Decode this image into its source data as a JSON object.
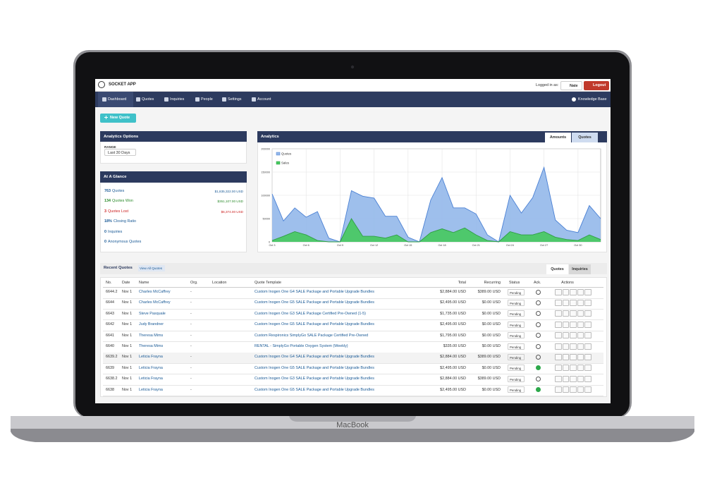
{
  "device_label": "MacBook",
  "header": {
    "app_name": "SOCKET APP",
    "logged_in_label": "Logged in as:",
    "user": "Nate",
    "logout": "Logout"
  },
  "nav": {
    "items": [
      "Dashboard",
      "Quotes",
      "Inquiries",
      "People",
      "Settings",
      "Account"
    ],
    "help": "Knowledge Base"
  },
  "new_quote_button": "New Quote",
  "analytics_options": {
    "title": "Analytics Options",
    "range_label": "RANGE",
    "range_value": "Last 30 Days"
  },
  "at_a_glance": {
    "title": "At A Glance",
    "items": [
      {
        "count": "763",
        "label": "Quotes",
        "amount": "$1,835,322.00 USD"
      },
      {
        "count": "134",
        "label": "Quotes Won",
        "amount": "$351,107.00 USD"
      },
      {
        "count": "3",
        "label": "Quotes Lost",
        "amount": "$6,374.00 USD"
      },
      {
        "count": "18%",
        "label": "Closing Ratio"
      },
      {
        "count": "0",
        "label": "Inquiries"
      },
      {
        "count": "0",
        "label": "Anonymous Quotes"
      }
    ]
  },
  "analytics": {
    "title": "Analytics",
    "tabs": [
      "Amounts",
      "Quotes"
    ],
    "active_tab": 0,
    "chart": {
      "type": "area",
      "categories": [
        "Oct 3",
        null,
        null,
        "Oct 6",
        null,
        null,
        "Oct 9",
        null,
        null,
        "Oct 12",
        null,
        null,
        "Oct 15",
        null,
        null,
        "Oct 18",
        null,
        null,
        "Oct 21",
        null,
        null,
        "Oct 24",
        null,
        null,
        "Oct 27",
        null,
        null,
        "Oct 30",
        null,
        null
      ],
      "series": [
        {
          "name": "Quotes",
          "color": "#4a80d4",
          "fill": "#94b8ea",
          "values": [
            103000,
            45000,
            73000,
            53000,
            65000,
            8000,
            0,
            110000,
            98000,
            94000,
            55000,
            55000,
            10000,
            0,
            90000,
            138000,
            73000,
            73000,
            60000,
            15000,
            0,
            100000,
            62000,
            95000,
            160000,
            47000,
            25000,
            20000,
            78000,
            50000
          ]
        },
        {
          "name": "Sales",
          "color": "#2f9e44",
          "fill": "#45c95e",
          "values": [
            3000,
            12000,
            22000,
            15000,
            3000,
            0,
            0,
            50000,
            12000,
            12000,
            8000,
            15000,
            0,
            0,
            20000,
            28000,
            20000,
            30000,
            15000,
            3000,
            0,
            22000,
            15000,
            15000,
            22000,
            10000,
            5000,
            3000,
            15000,
            5000
          ]
        }
      ],
      "ylim": [
        0,
        200000
      ],
      "yticks": [
        0,
        50000,
        100000,
        150000,
        200000
      ],
      "grid": true
    }
  },
  "recent_quotes": {
    "title": "Recent Quotes",
    "view_all": "View All Quotes",
    "tabs": [
      "Quotes",
      "Inquiries"
    ],
    "active_tab": 0,
    "columns": [
      "No.",
      "Date",
      "Name",
      "Org.",
      "Location",
      "Quote Template",
      "Total",
      "Recurring",
      "Status",
      "Ack.",
      "Actions"
    ],
    "rows": [
      {
        "no": "6644.2",
        "date": "Nov 1",
        "name": "Charles McCaffrey",
        "org": "-",
        "template": "Custom Inogen One G4 SALE Package and Portable Upgrade Bundles",
        "total": "$2,884.00 USD",
        "recurring": "$389.00 USD",
        "status": "Pending",
        "ack": false
      },
      {
        "no": "6644",
        "date": "Nov 1",
        "name": "Charles McCaffrey",
        "org": "-",
        "template": "Custom Inogen One G5 SALE Package and Portable Upgrade Bundles",
        "total": "$2,495.00 USD",
        "recurring": "$0.00 USD",
        "status": "Pending",
        "ack": false
      },
      {
        "no": "6643",
        "date": "Nov 1",
        "name": "Steve Pasquale",
        "org": "-",
        "template": "Custom Inogen One G3 SALE Package Certified Pre-Owned (1-5)",
        "total": "$1,735.00 USD",
        "recurring": "$0.00 USD",
        "status": "Pending",
        "ack": false
      },
      {
        "no": "6642",
        "date": "Nov 1",
        "name": "Judy Brandner",
        "org": "-",
        "template": "Custom Inogen One G5 SALE Package and Portable Upgrade Bundles",
        "total": "$2,495.00 USD",
        "recurring": "$0.00 USD",
        "status": "Pending",
        "ack": false
      },
      {
        "no": "6641",
        "date": "Nov 1",
        "name": "Theresa Mims",
        "org": "-",
        "template": "Custom Respironics SimplyGo SALE Package Certified Pre-Owned",
        "total": "$1,795.00 USD",
        "recurring": "$0.00 USD",
        "status": "Pending",
        "ack": false
      },
      {
        "no": "6640",
        "date": "Nov 1",
        "name": "Theresa Mims",
        "org": "-",
        "template": "RENTAL - SimplyGo Portable Oxygen System (Weekly)",
        "total": "$335.00 USD",
        "recurring": "$0.00 USD",
        "status": "Pending",
        "ack": false
      },
      {
        "no": "6639.2",
        "date": "Nov 1",
        "name": "Leticia Frayna",
        "org": "-",
        "template": "Custom Inogen One G4 SALE Package and Portable Upgrade Bundles",
        "total": "$2,884.00 USD",
        "recurring": "$389.00 USD",
        "status": "Pending",
        "ack": false
      },
      {
        "no": "6639",
        "date": "Nov 1",
        "name": "Leticia Frayna",
        "org": "-",
        "template": "Custom Inogen One G5 SALE Package and Portable Upgrade Bundles",
        "total": "$2,495.00 USD",
        "recurring": "$0.00 USD",
        "status": "Pending",
        "ack": true
      },
      {
        "no": "6638.2",
        "date": "Nov 1",
        "name": "Leticia Frayna",
        "org": "-",
        "template": "Custom Inogen One G3 SALE Package and Portable Upgrade Bundles",
        "total": "$2,884.00 USD",
        "recurring": "$389.00 USD",
        "status": "Pending",
        "ack": false
      },
      {
        "no": "6638",
        "date": "Nov 1",
        "name": "Leticia Frayna",
        "org": "-",
        "template": "Custom Inogen One G5 SALE Package and Portable Upgrade Bundles",
        "total": "$2,495.00 USD",
        "recurring": "$0.00 USD",
        "status": "Pending",
        "ack": true
      }
    ]
  }
}
